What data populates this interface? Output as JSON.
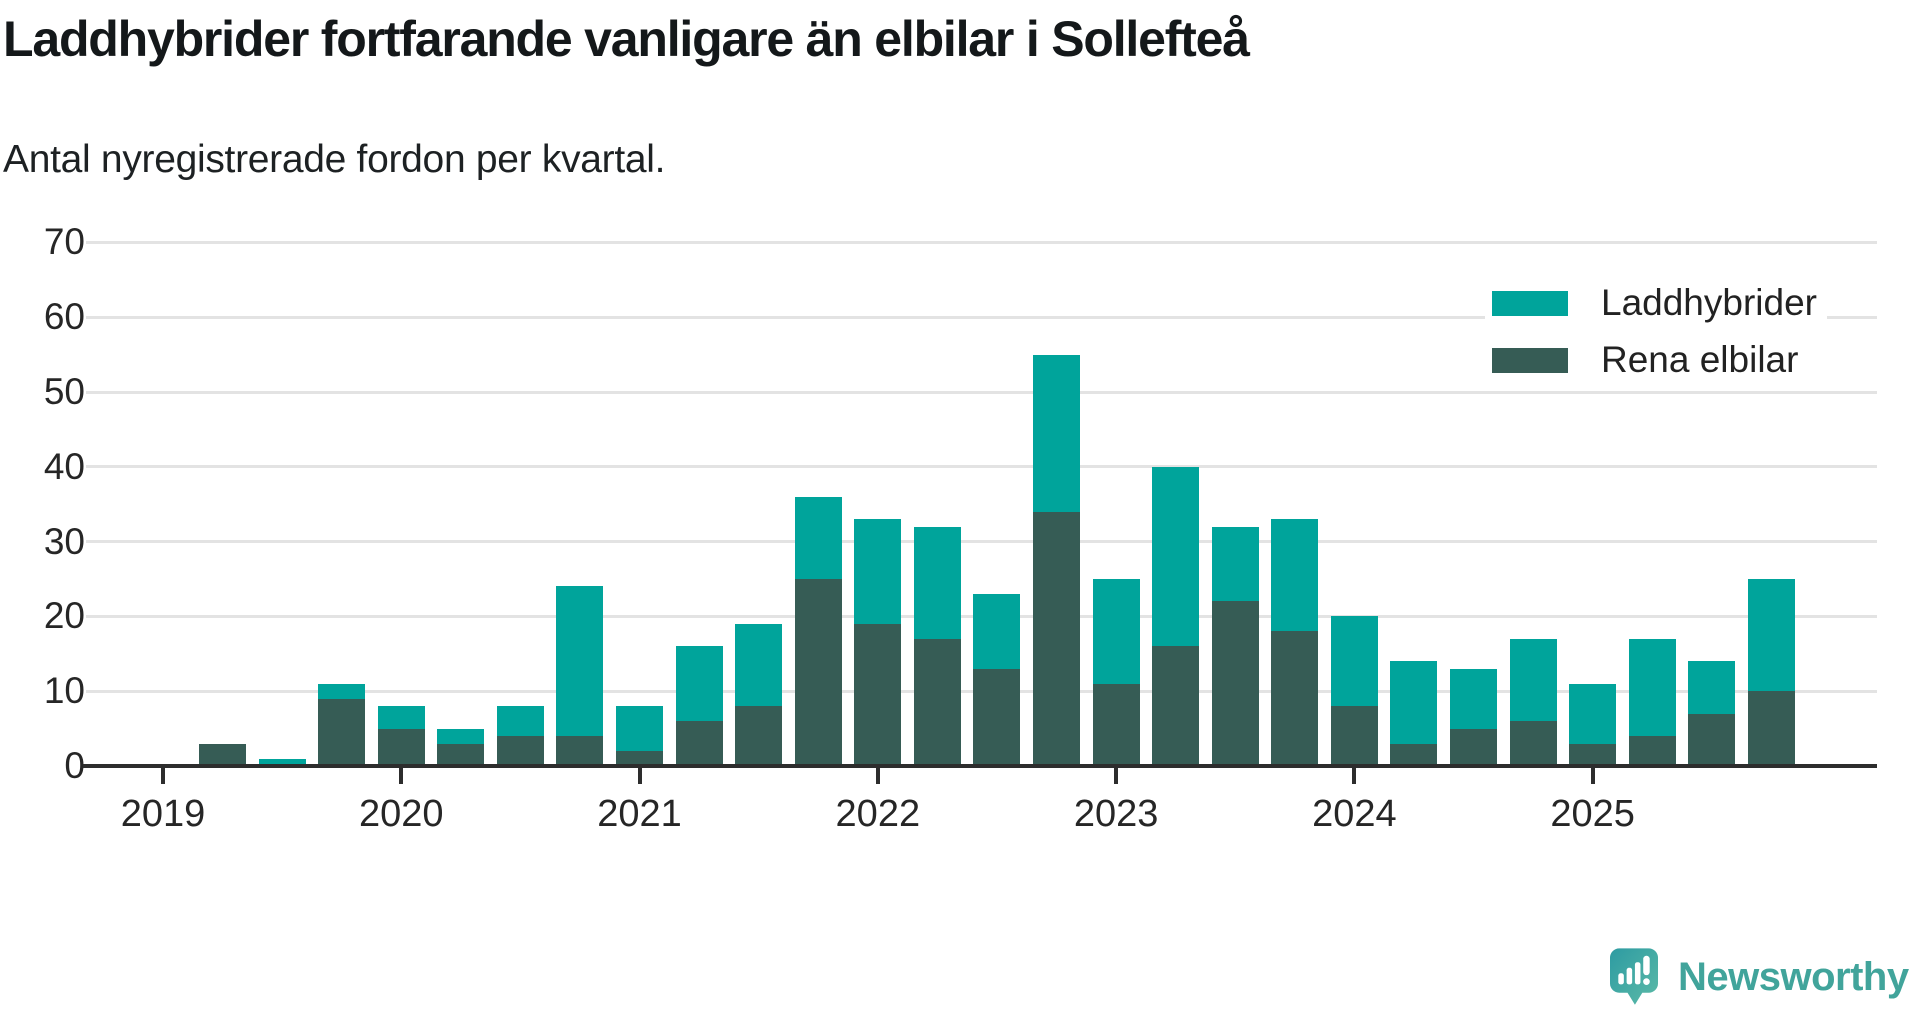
{
  "header": {
    "title": "Laddhybrider fortfarande vanligare än elbilar i Sollefteå",
    "subtitle": "Antal nyregistrerade fordon per kvartal."
  },
  "chart_data": {
    "type": "bar",
    "stacked": true,
    "title": "Laddhybrider fortfarande vanligare än elbilar i Sollefteå",
    "subtitle": "Antal nyregistrerade fordon per kvartal.",
    "categories": [
      "2019 Q1",
      "2019 Q2",
      "2019 Q3",
      "2019 Q4",
      "2020 Q1",
      "2020 Q2",
      "2020 Q3",
      "2020 Q4",
      "2021 Q1",
      "2021 Q2",
      "2021 Q3",
      "2021 Q4",
      "2022 Q1",
      "2022 Q2",
      "2022 Q3",
      "2022 Q4",
      "2023 Q1",
      "2023 Q2",
      "2023 Q3",
      "2023 Q4",
      "2024 Q1",
      "2024 Q2",
      "2024 Q3",
      "2024 Q4",
      "2025 Q1",
      "2025 Q2",
      "2025 Q3",
      "2025 Q4"
    ],
    "series": [
      {
        "name": "Laddhybrider",
        "color": "#00a49b",
        "stack_position": "top",
        "values": [
          0,
          0,
          1,
          2,
          3,
          2,
          4,
          20,
          6,
          10,
          11,
          11,
          14,
          15,
          10,
          21,
          14,
          24,
          10,
          15,
          12,
          11,
          8,
          11,
          8,
          13,
          7,
          15
        ]
      },
      {
        "name": "Rena elbilar",
        "color": "#365c55",
        "stack_position": "bottom",
        "values": [
          0,
          3,
          0,
          9,
          5,
          3,
          4,
          4,
          2,
          6,
          8,
          25,
          19,
          17,
          13,
          34,
          11,
          16,
          22,
          18,
          8,
          3,
          5,
          6,
          3,
          4,
          7,
          10
        ]
      }
    ],
    "totals": [
      0,
      3,
      1,
      11,
      8,
      5,
      8,
      24,
      8,
      16,
      19,
      36,
      33,
      32,
      23,
      55,
      25,
      40,
      32,
      33,
      20,
      14,
      13,
      17,
      11,
      17,
      14,
      25
    ],
    "xlabel": "",
    "ylabel": "",
    "ylim": [
      0,
      70
    ],
    "y_ticks": [
      0,
      10,
      20,
      30,
      40,
      50,
      60,
      70
    ],
    "x_tick_labels": [
      "2019",
      "2020",
      "2021",
      "2022",
      "2023",
      "2024",
      "2025"
    ],
    "x_tick_quarter_index": [
      0,
      4,
      8,
      12,
      16,
      20,
      24
    ],
    "grid": true,
    "legend_position": "top-right",
    "grid_color": "#e3e3e3",
    "axis_color": "#2d2d2d",
    "label_color": "#262626"
  },
  "branding": {
    "logo_text": "Newsworthy",
    "logo_color": "#41a49b"
  }
}
